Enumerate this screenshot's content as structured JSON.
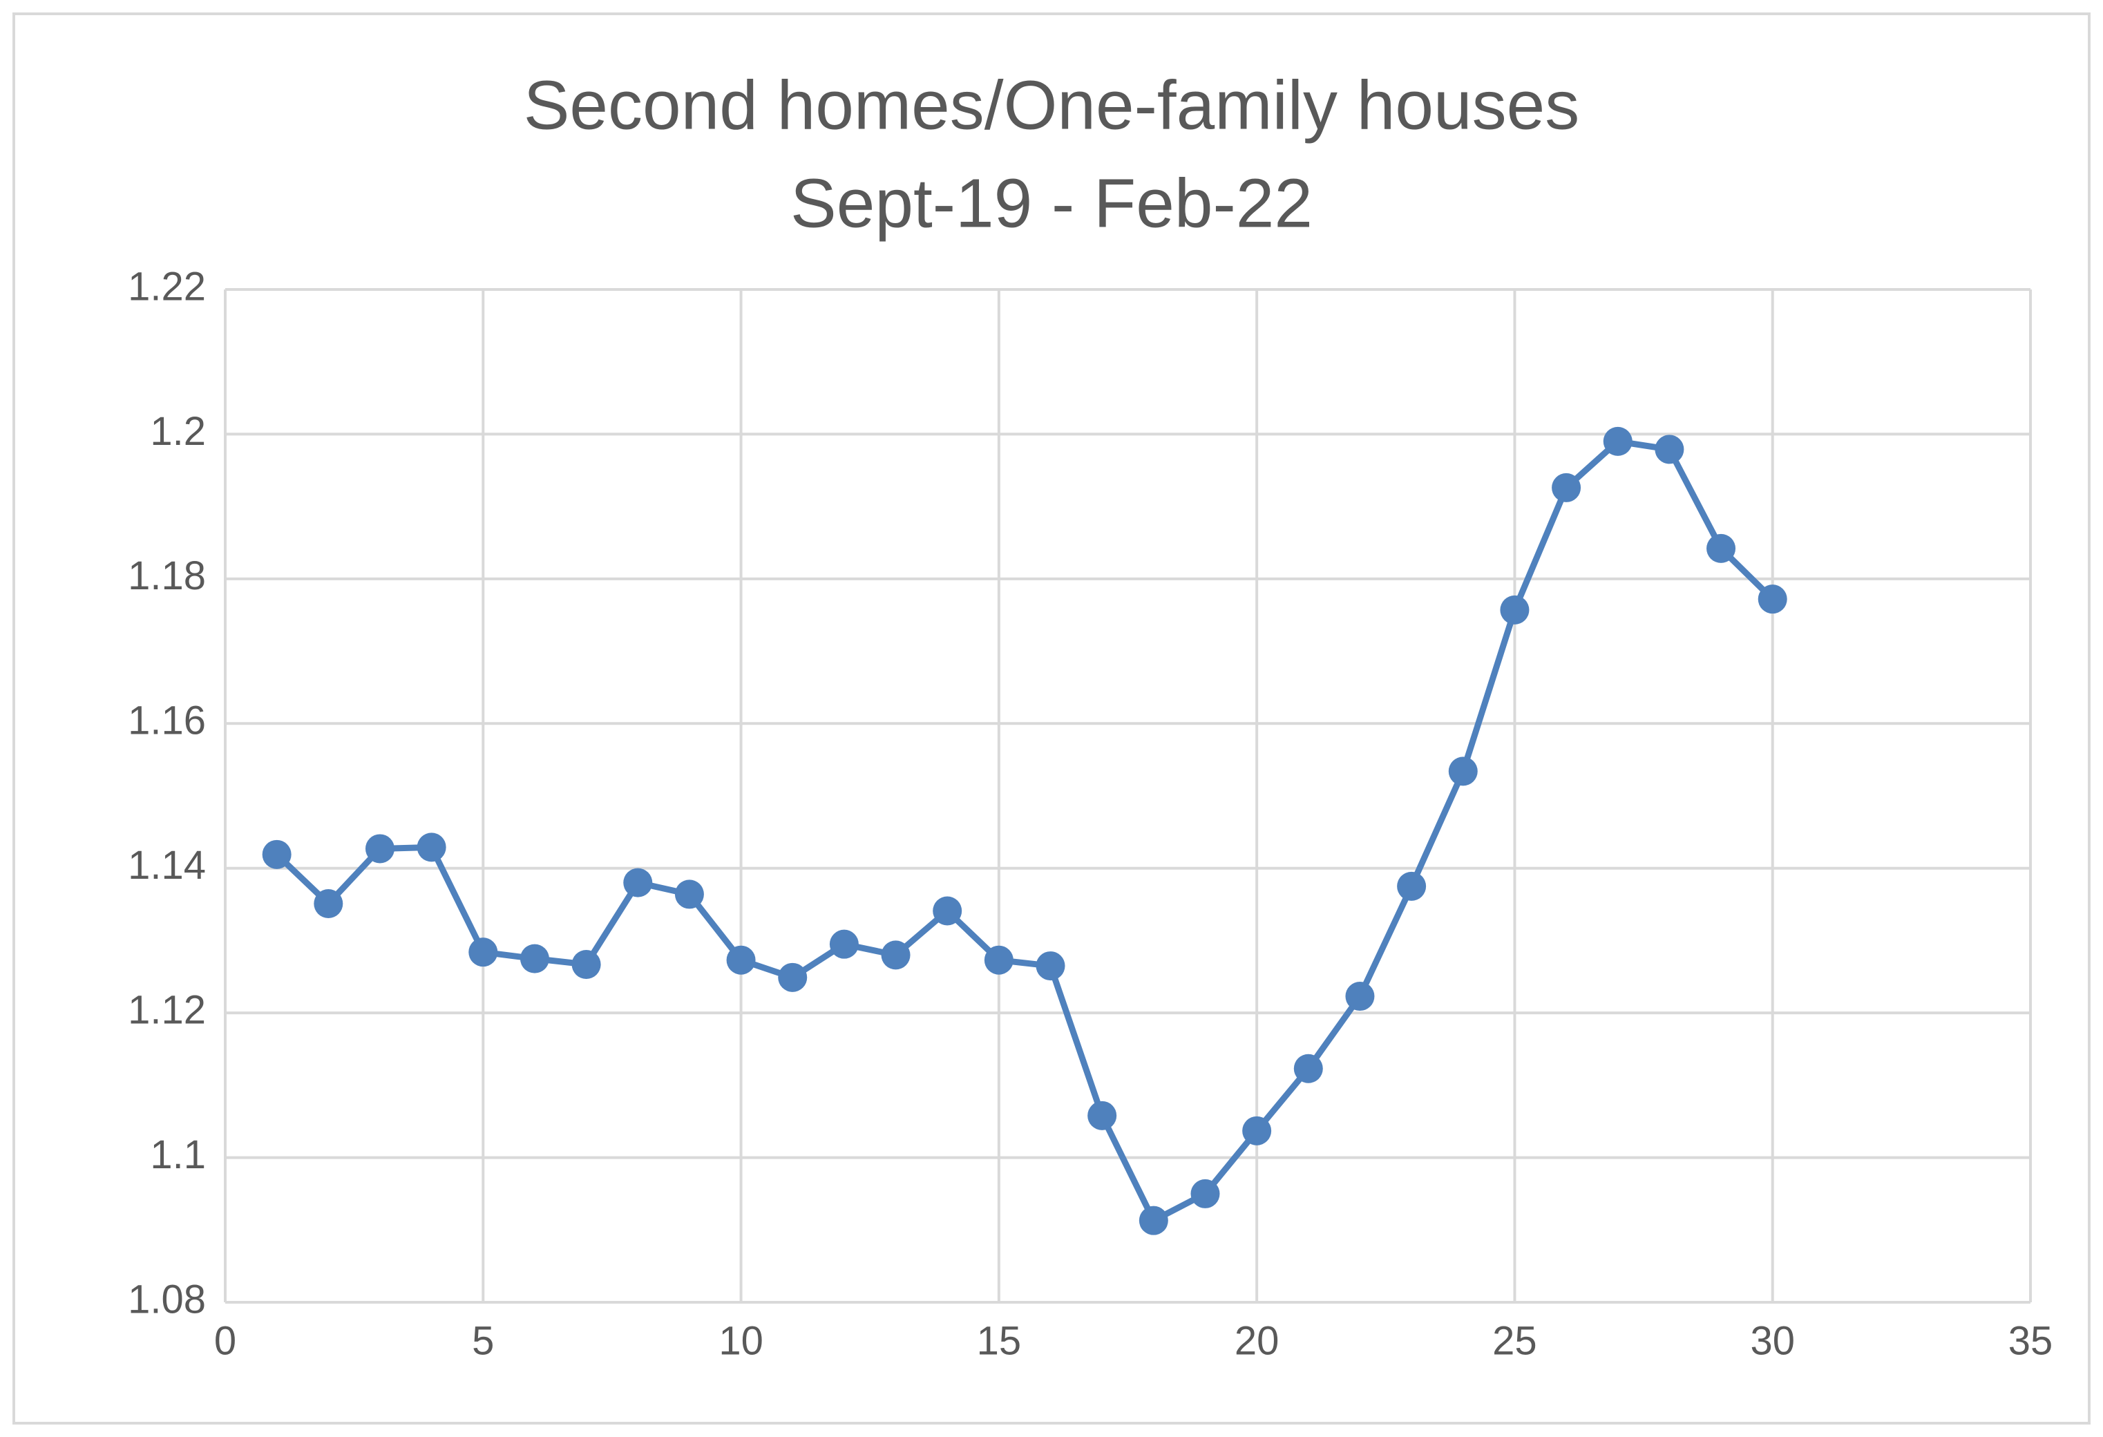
{
  "chart_data": {
    "type": "line",
    "title": "Second homes/One-family houses",
    "subtitle": "Sept-19 - Feb-22",
    "x": [
      1,
      2,
      3,
      4,
      5,
      6,
      7,
      8,
      9,
      10,
      11,
      12,
      13,
      14,
      15,
      16,
      17,
      18,
      19,
      20,
      21,
      22,
      23,
      24,
      25,
      26,
      27,
      28,
      29,
      30
    ],
    "values": [
      1.1419,
      1.1351,
      1.1427,
      1.1429,
      1.1284,
      1.1275,
      1.1267,
      1.138,
      1.1364,
      1.1273,
      1.1249,
      1.1295,
      1.128,
      1.1341,
      1.1273,
      1.1265,
      1.1058,
      1.0913,
      1.095,
      1.1037,
      1.1123,
      1.1223,
      1.1375,
      1.1534,
      1.1757,
      1.1926,
      1.199,
      1.1979,
      1.1842,
      1.1772
    ],
    "color": "#4f81bd",
    "markers": true,
    "xlim": [
      0,
      35
    ],
    "xticks": [
      0,
      5,
      10,
      15,
      20,
      25,
      30,
      35
    ],
    "ylim": [
      1.08,
      1.22
    ],
    "yticks": [
      1.08,
      1.1,
      1.12,
      1.14,
      1.16,
      1.18,
      1.2,
      1.22
    ],
    "grid": true
  }
}
